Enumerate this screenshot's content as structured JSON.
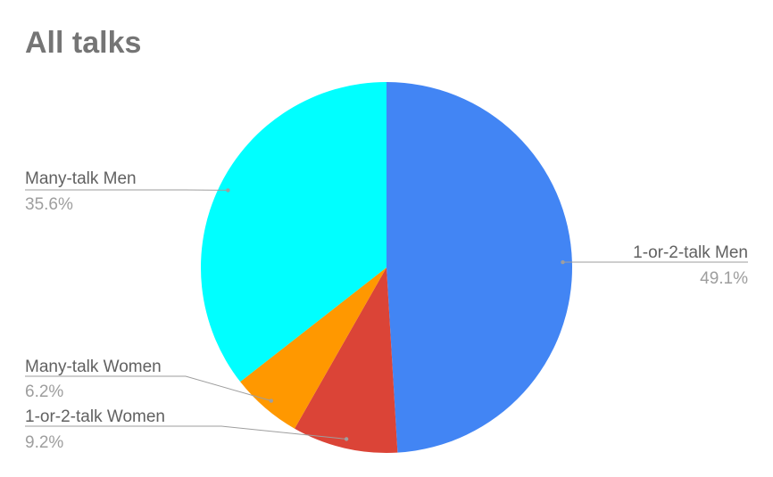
{
  "chart_data": {
    "type": "pie",
    "title": "All talks",
    "slices": [
      {
        "name": "1-or-2-talk Men",
        "value": 49.1,
        "label": "49.1%",
        "color": "#4285f4",
        "label_side": "right"
      },
      {
        "name": "1-or-2-talk Women",
        "value": 9.2,
        "label": "9.2%",
        "color": "#db4437",
        "label_side": "left"
      },
      {
        "name": "Many-talk Women",
        "value": 6.2,
        "label": "6.2%",
        "color": "#ff9800",
        "label_side": "left"
      },
      {
        "name": "Many-talk Men",
        "value": 35.6,
        "label": "35.6%",
        "color": "#00ffff",
        "label_side": "left"
      }
    ],
    "start_angle": "12 o'clock",
    "direction": "clockwise",
    "legend": "none"
  }
}
